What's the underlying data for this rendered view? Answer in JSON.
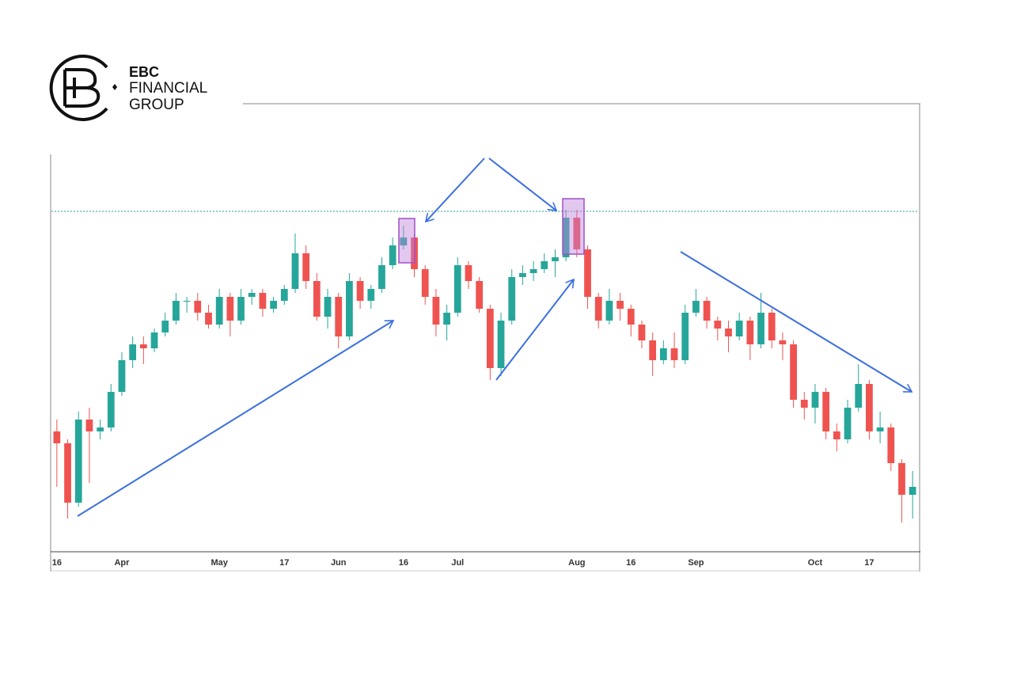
{
  "brand": {
    "line1": "EBC",
    "line2": "FINANCIAL",
    "line3": "GROUP"
  },
  "chart_data": {
    "type": "candlestick",
    "up_color": "#26a69a",
    "down_color": "#ef5350",
    "ylim": [
      0,
      100
    ],
    "reference_line": 85.6,
    "categories": [
      "16",
      null,
      null,
      null,
      null,
      null,
      "Apr",
      null,
      null,
      null,
      null,
      null,
      null,
      null,
      null,
      "May",
      null,
      null,
      null,
      null,
      null,
      "17",
      null,
      null,
      null,
      null,
      "Jun",
      null,
      null,
      null,
      null,
      null,
      "16",
      null,
      null,
      null,
      null,
      "Jul",
      null,
      null,
      null,
      null,
      null,
      null,
      null,
      null,
      null,
      null,
      "Aug",
      null,
      null,
      null,
      null,
      "16",
      null,
      null,
      null,
      null,
      null,
      "Sep",
      null,
      null,
      null,
      null,
      null,
      null,
      null,
      null,
      null,
      null,
      "Oct",
      null,
      null,
      null,
      null,
      "17",
      null,
      null,
      null,
      null
    ],
    "ohlc": [
      [
        30,
        33,
        16,
        27
      ],
      [
        27,
        28,
        8,
        12
      ],
      [
        12,
        35,
        11,
        33
      ],
      [
        33,
        36,
        17,
        30
      ],
      [
        30,
        33,
        28,
        31
      ],
      [
        31,
        42,
        30,
        40
      ],
      [
        40,
        50,
        39,
        48
      ],
      [
        48,
        54,
        46,
        52
      ],
      [
        52,
        54,
        47,
        51
      ],
      [
        51,
        56,
        50,
        55
      ],
      [
        55,
        60,
        54,
        58
      ],
      [
        58,
        65,
        57,
        63
      ],
      [
        63,
        64,
        60,
        63
      ],
      [
        63,
        65,
        58,
        60
      ],
      [
        60,
        62,
        56,
        57
      ],
      [
        57,
        66,
        56,
        64
      ],
      [
        64,
        65,
        54,
        58
      ],
      [
        58,
        66,
        57,
        64
      ],
      [
        64,
        66,
        62,
        65
      ],
      [
        65,
        66,
        59,
        61
      ],
      [
        61,
        64,
        60,
        63
      ],
      [
        63,
        67,
        62,
        66
      ],
      [
        66,
        80,
        65,
        75
      ],
      [
        75,
        77,
        66,
        68
      ],
      [
        68,
        70,
        58,
        59
      ],
      [
        59,
        66,
        56,
        64
      ],
      [
        64,
        65,
        51,
        54
      ],
      [
        54,
        70,
        53,
        68
      ],
      [
        68,
        69,
        61,
        63
      ],
      [
        63,
        67,
        61,
        66
      ],
      [
        66,
        74,
        65,
        72
      ],
      [
        72,
        79,
        71,
        77
      ],
      [
        77,
        82,
        76,
        79
      ],
      [
        79,
        80,
        69,
        71
      ],
      [
        71,
        72,
        62,
        64
      ],
      [
        64,
        66,
        54,
        57
      ],
      [
        57,
        62,
        53,
        60
      ],
      [
        60,
        74,
        59,
        72
      ],
      [
        72,
        73,
        66,
        68
      ],
      [
        68,
        69,
        60,
        61
      ],
      [
        61,
        62,
        43,
        46
      ],
      [
        46,
        60,
        44,
        58
      ],
      [
        58,
        71,
        57,
        69
      ],
      [
        69,
        72,
        67,
        70
      ],
      [
        70,
        73,
        68,
        71
      ],
      [
        71,
        75,
        70,
        73
      ],
      [
        73,
        76,
        69,
        74
      ],
      [
        74,
        86,
        73,
        84
      ],
      [
        84,
        86,
        74,
        76
      ],
      [
        76,
        77,
        61,
        64
      ],
      [
        64,
        65,
        56,
        58
      ],
      [
        58,
        66,
        57,
        63
      ],
      [
        63,
        65,
        58,
        61
      ],
      [
        61,
        62,
        54,
        57
      ],
      [
        57,
        58,
        51,
        53
      ],
      [
        53,
        55,
        44,
        48
      ],
      [
        48,
        53,
        47,
        51
      ],
      [
        51,
        55,
        46,
        48
      ],
      [
        48,
        62,
        47,
        60
      ],
      [
        60,
        66,
        59,
        63
      ],
      [
        63,
        64,
        56,
        58
      ],
      [
        58,
        59,
        53,
        56
      ],
      [
        56,
        58,
        50,
        54
      ],
      [
        54,
        60,
        53,
        58
      ],
      [
        58,
        59,
        48,
        52
      ],
      [
        52,
        65,
        51,
        60
      ],
      [
        60,
        61,
        51,
        53
      ],
      [
        53,
        55,
        48,
        52
      ],
      [
        52,
        53,
        36,
        38
      ],
      [
        38,
        40,
        33,
        36
      ],
      [
        36,
        42,
        32,
        40
      ],
      [
        40,
        41,
        28,
        30
      ],
      [
        30,
        32,
        25,
        28
      ],
      [
        28,
        38,
        27,
        36
      ],
      [
        36,
        47,
        35,
        42
      ],
      [
        42,
        43,
        28,
        30
      ],
      [
        30,
        35,
        27,
        31
      ],
      [
        31,
        32,
        20,
        22
      ],
      [
        22,
        23,
        7,
        14
      ],
      [
        14,
        20,
        8,
        16
      ]
    ]
  }
}
